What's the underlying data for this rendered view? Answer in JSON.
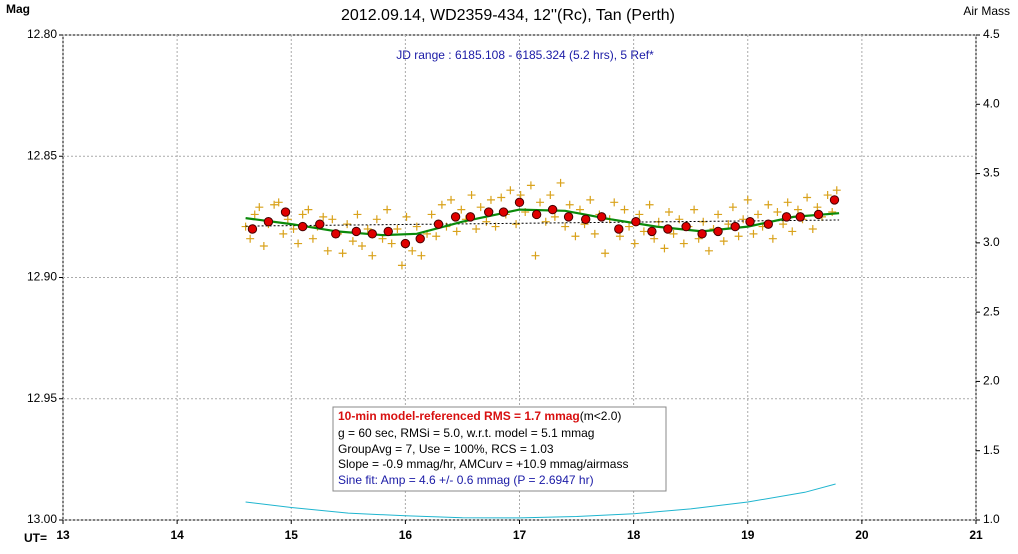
{
  "chart_data": {
    "type": "scatter",
    "title": "2012.09.14, WD2359-434, 12''(Rc), Tan (Perth)",
    "subtitle": "JD range : 6185.108 - 6185.324 (5.2 hrs), 5 Ref*",
    "y_label": "Mag",
    "y2_label": "Air Mass",
    "x_label": "UT=",
    "xlim": [
      13,
      21
    ],
    "xticks": [
      13,
      14,
      15,
      16,
      17,
      18,
      19,
      20,
      21
    ],
    "ylim": [
      12.8,
      13.0
    ],
    "y_inverted": true,
    "yticks": [
      {
        "value": 12.8,
        "label": "12.80"
      },
      12.85,
      {
        "value": 12.9,
        "label": "12.90"
      },
      12.95,
      {
        "value": 13.0,
        "label": "13.00"
      }
    ],
    "y2lim": [
      1.0,
      4.5
    ],
    "y2ticks": [
      {
        "value": 1.0,
        "label": "1.0"
      },
      1.5,
      {
        "value": 2.0,
        "label": "2.0"
      },
      2.5,
      {
        "value": 3.0,
        "label": "3.0"
      },
      3.5,
      {
        "value": 4.0,
        "label": "4.0"
      },
      4.5
    ],
    "grid": true,
    "series": [
      {
        "kind": "cross",
        "color": "#d9a21b",
        "x": [
          14.6,
          14.64,
          14.68,
          14.72,
          14.76,
          14.8,
          14.85,
          14.89,
          14.93,
          14.97,
          15.02,
          15.06,
          15.1,
          15.15,
          15.19,
          15.23,
          15.28,
          15.32,
          15.36,
          15.41,
          15.45,
          15.49,
          15.54,
          15.58,
          15.62,
          15.67,
          15.71,
          15.75,
          15.8,
          15.84,
          15.88,
          15.93,
          15.97,
          16.01,
          16.06,
          16.1,
          16.14,
          16.19,
          16.23,
          16.27,
          16.32,
          16.36,
          16.4,
          16.45,
          16.49,
          16.53,
          16.58,
          16.62,
          16.66,
          16.71,
          16.75,
          16.79,
          16.84,
          16.88,
          16.92,
          16.97,
          17.01,
          17.05,
          17.1,
          17.14,
          17.18,
          17.23,
          17.27,
          17.31,
          17.36,
          17.4,
          17.44,
          17.49,
          17.53,
          17.57,
          17.62,
          17.66,
          17.7,
          17.75,
          17.79,
          17.83,
          17.88,
          17.92,
          17.96,
          18.01,
          18.05,
          18.09,
          18.14,
          18.18,
          18.22,
          18.27,
          18.31,
          18.35,
          18.4,
          18.44,
          18.48,
          18.53,
          18.57,
          18.61,
          18.66,
          18.7,
          18.74,
          18.79,
          18.83,
          18.87,
          18.92,
          18.96,
          19.0,
          19.05,
          19.09,
          19.13,
          19.18,
          19.22,
          19.26,
          19.31,
          19.35,
          19.39,
          19.44,
          19.48,
          19.52,
          19.57,
          19.61,
          19.65,
          19.7,
          19.74,
          19.78
        ],
        "values": [
          12.879,
          12.884,
          12.874,
          12.871,
          12.887,
          12.878,
          12.87,
          12.869,
          12.882,
          12.876,
          12.88,
          12.886,
          12.874,
          12.872,
          12.884,
          12.879,
          12.875,
          12.889,
          12.876,
          12.882,
          12.89,
          12.878,
          12.885,
          12.874,
          12.887,
          12.88,
          12.891,
          12.876,
          12.884,
          12.872,
          12.886,
          12.88,
          12.895,
          12.875,
          12.889,
          12.879,
          12.891,
          12.882,
          12.874,
          12.883,
          12.87,
          12.879,
          12.868,
          12.881,
          12.872,
          12.876,
          12.866,
          12.88,
          12.871,
          12.877,
          12.868,
          12.879,
          12.867,
          12.874,
          12.864,
          12.878,
          12.866,
          12.873,
          12.862,
          12.891,
          12.869,
          12.877,
          12.866,
          12.875,
          12.861,
          12.879,
          12.87,
          12.883,
          12.872,
          12.878,
          12.868,
          12.882,
          12.874,
          12.89,
          12.876,
          12.869,
          12.883,
          12.872,
          12.879,
          12.886,
          12.874,
          12.881,
          12.87,
          12.884,
          12.877,
          12.888,
          12.873,
          12.882,
          12.876,
          12.886,
          12.879,
          12.872,
          12.884,
          12.877,
          12.889,
          12.88,
          12.874,
          12.885,
          12.878,
          12.871,
          12.883,
          12.876,
          12.868,
          12.882,
          12.874,
          12.879,
          12.87,
          12.884,
          12.873,
          12.878,
          12.869,
          12.881,
          12.872,
          12.876,
          12.867,
          12.88,
          12.871,
          12.875,
          12.866,
          12.873,
          12.864
        ]
      },
      {
        "kind": "dashed",
        "color": "#000000",
        "x": [
          14.6,
          19.8
        ],
        "values": [
          12.8788,
          12.8763
        ]
      },
      {
        "kind": "line",
        "color": "#0a8a0a",
        "x": [
          14.6,
          15.0,
          15.4,
          15.8,
          16.1,
          16.5,
          17.0,
          17.4,
          17.8,
          18.2,
          18.6,
          19.0,
          19.4,
          19.8
        ],
        "values": [
          12.8755,
          12.878,
          12.881,
          12.8825,
          12.882,
          12.877,
          12.872,
          12.8725,
          12.876,
          12.879,
          12.881,
          12.879,
          12.875,
          12.8735
        ]
      },
      {
        "kind": "circle",
        "color": "#e00000",
        "x": [
          14.66,
          14.8,
          14.95,
          15.1,
          15.25,
          15.39,
          15.57,
          15.71,
          15.85,
          16.0,
          16.13,
          16.29,
          16.44,
          16.57,
          16.73,
          16.86,
          17.0,
          17.15,
          17.29,
          17.43,
          17.58,
          17.72,
          17.87,
          18.02,
          18.16,
          18.3,
          18.46,
          18.6,
          18.74,
          18.89,
          19.02,
          19.18,
          19.34,
          19.46,
          19.62,
          19.76
        ],
        "values": [
          12.88,
          12.877,
          12.873,
          12.879,
          12.878,
          12.882,
          12.881,
          12.882,
          12.881,
          12.886,
          12.884,
          12.878,
          12.875,
          12.875,
          12.873,
          12.873,
          12.869,
          12.874,
          12.872,
          12.875,
          12.876,
          12.875,
          12.88,
          12.877,
          12.881,
          12.88,
          12.879,
          12.882,
          12.881,
          12.879,
          12.877,
          12.878,
          12.875,
          12.875,
          12.874,
          12.868
        ]
      },
      {
        "kind": "line",
        "axis": "y2",
        "color": "#1fb5cf",
        "x": [
          14.6,
          15.0,
          15.5,
          16.0,
          16.5,
          17.0,
          17.5,
          18.0,
          18.5,
          19.0,
          19.5,
          19.77
        ],
        "values": [
          1.13,
          1.09,
          1.05,
          1.03,
          1.016,
          1.015,
          1.025,
          1.045,
          1.08,
          1.13,
          1.2,
          1.26
        ]
      }
    ],
    "info": {
      "rms": "10-min model-referenced RMS = 1.7 mmag",
      "rms_note": " (m<2.0)",
      "lines": [
        "g = 60 sec, RMSi = 5.0, w.r.t. model = 5.1 mmag",
        "GroupAvg  = 7, Use = 100%, RCS = 1.03",
        "Slope = -0.9 mmag/hr, AMCurv  = +10.9 mmag/airmass"
      ],
      "sine": "Sine fit: Amp = 4.6 +/- 0.6 mmag (P = 2.6947 hr)"
    }
  }
}
